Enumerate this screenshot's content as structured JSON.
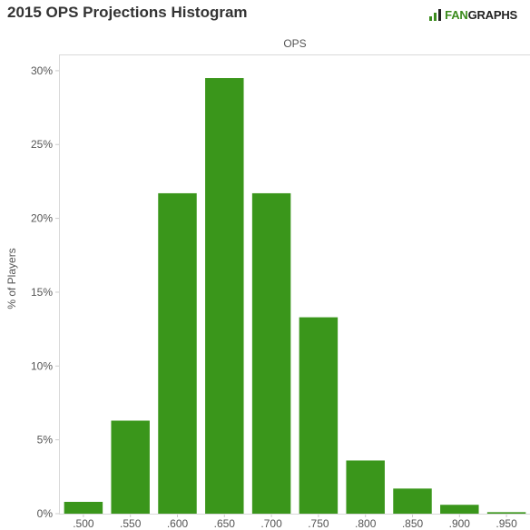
{
  "header": {
    "title": "2015 OPS Projections Histogram",
    "logo_text_fan": "FAN",
    "logo_text_graphs": "GRAPHS"
  },
  "colors": {
    "bar": "#3a961b",
    "axis_line": "#cccccc",
    "text": "#555555"
  },
  "chart_data": {
    "type": "bar",
    "title": "2015 OPS Projections Histogram",
    "xlabel": "OPS",
    "ylabel": "% of Players",
    "categories": [
      ".500",
      ".550",
      ".600",
      ".650",
      ".700",
      ".750",
      ".800",
      ".850",
      ".900",
      ".950"
    ],
    "values": [
      0.8,
      6.3,
      21.7,
      29.5,
      21.7,
      13.3,
      3.6,
      1.7,
      0.6,
      0.1
    ],
    "ylim": [
      0,
      31.1
    ],
    "yticks": [
      0,
      5,
      10,
      15,
      20,
      25,
      30
    ],
    "ytick_labels": [
      "0%",
      "5%",
      "10%",
      "15%",
      "20%",
      "25%",
      "30%"
    ],
    "xlabel_position": "top",
    "grid": false
  }
}
